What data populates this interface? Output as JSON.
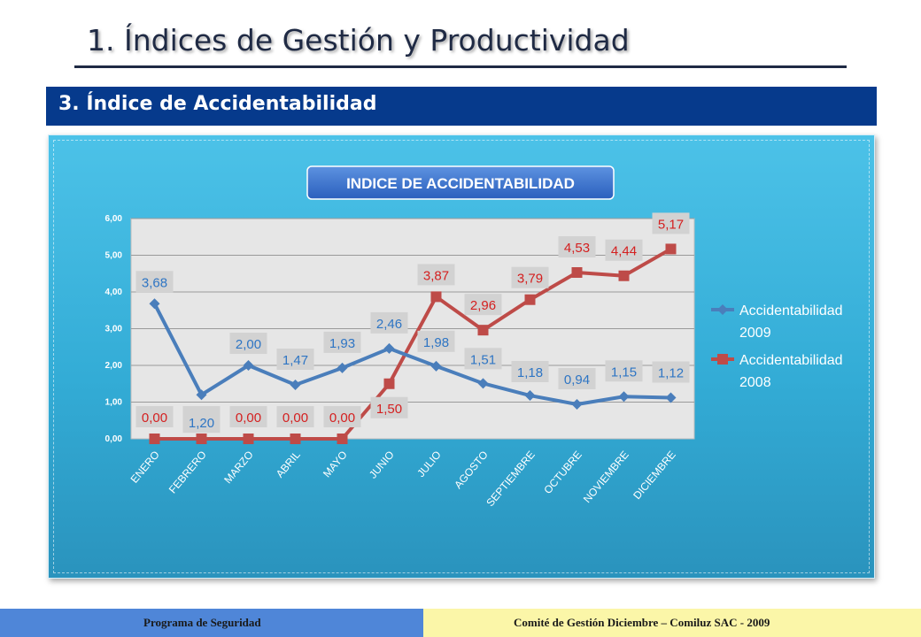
{
  "header": {
    "title": "1.  Índices de Gestión y Productividad",
    "section": "3. Índice de Accidentabilidad"
  },
  "chart_data": {
    "type": "line",
    "title": "INDICE DE ACCIDENTABILIDAD",
    "categories": [
      "ENERO",
      "FEBRERO",
      "MARZO",
      "ABRIL",
      "MAYO",
      "JUNIO",
      "JULIO",
      "AGOSTO",
      "SEPTIEMBRE",
      "OCTUBRE",
      "NOVIEMBRE",
      "DICIEMBRE"
    ],
    "y_ticks": [
      "0,00",
      "1,00",
      "2,00",
      "3,00",
      "4,00",
      "5,00",
      "6,00"
    ],
    "ylim": [
      0,
      6
    ],
    "grid": true,
    "legend_position": "right",
    "series": [
      {
        "name": "Accidentabilidad 2009",
        "color": "#4a7ebb",
        "label_color": "#2e75c4",
        "values": [
          3.68,
          1.2,
          2.0,
          1.47,
          1.93,
          2.46,
          1.98,
          1.51,
          1.18,
          0.94,
          1.15,
          1.12
        ],
        "labels": [
          "3,68",
          "1,20",
          "2,00",
          "1,47",
          "1,93",
          "2,46",
          "1,98",
          "1,51",
          "1,18",
          "0,94",
          "1,15",
          "1,12"
        ]
      },
      {
        "name": "Accidentabilidad 2008",
        "color": "#be4b48",
        "label_color": "#d42020",
        "values": [
          0.0,
          0.0,
          0.0,
          0.0,
          0.0,
          1.5,
          3.87,
          2.96,
          3.79,
          4.53,
          4.44,
          5.17
        ],
        "labels": [
          "0,00",
          "0,00",
          "0,00",
          "0,00",
          "0,00",
          "1,50",
          "3,87",
          "2,96",
          "3,79",
          "4,53",
          "4,44",
          "5,17"
        ]
      }
    ]
  },
  "footer": {
    "left": "Programa de Seguridad",
    "right": "Comité de Gestión Diciembre – Comiluz  SAC - 2009"
  }
}
